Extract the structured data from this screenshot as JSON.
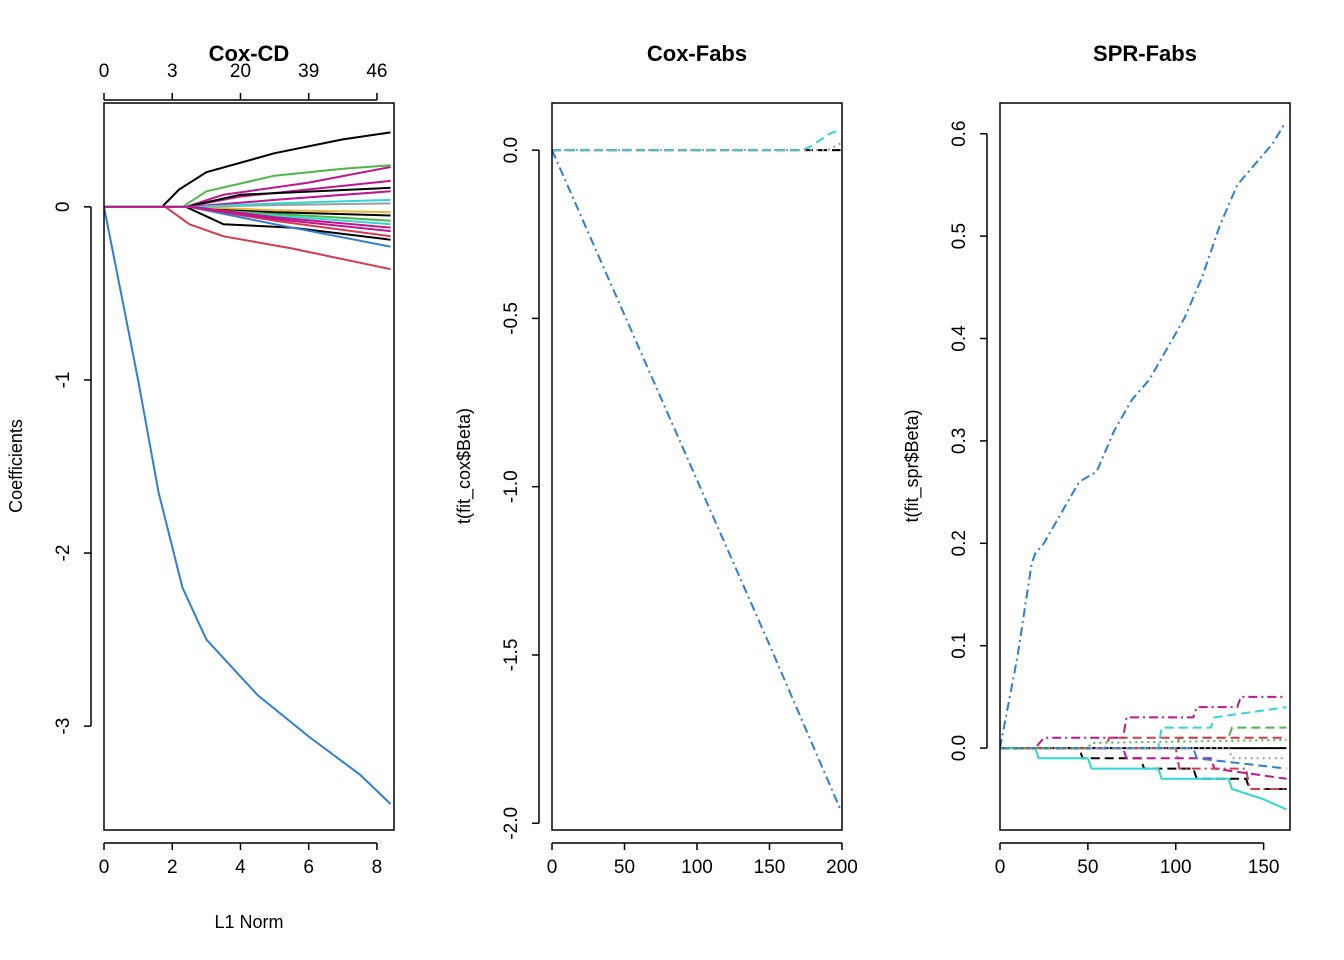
{
  "chart_data": [
    {
      "type": "line",
      "title": "Cox-CD",
      "xlabel": "L1 Norm",
      "ylabel": "Coefficients",
      "xlim": [
        0,
        8.5
      ],
      "ylim": [
        -3.6,
        0.6
      ],
      "x_ticks": [
        "0",
        "2",
        "4",
        "6",
        "8"
      ],
      "y_ticks": [
        "-3",
        "-2",
        "-1",
        "0"
      ],
      "top_axis_ticks": [
        "0",
        "3",
        "20",
        "39",
        "46"
      ],
      "top_axis_positions": [
        0,
        2,
        4,
        6,
        8
      ],
      "series": [
        {
          "color": "#2b7fd6",
          "values": [
            [
              0,
              0
            ],
            [
              0.5,
              -0.5
            ],
            [
              1.0,
              -1.0
            ],
            [
              1.6,
              -1.65
            ],
            [
              2.3,
              -2.2
            ],
            [
              3.0,
              -2.5
            ],
            [
              4.5,
              -2.82
            ],
            [
              6.0,
              -3.06
            ],
            [
              7.5,
              -3.28
            ],
            [
              8.4,
              -3.45
            ]
          ]
        },
        {
          "color": "#000000",
          "values": [
            [
              0,
              0
            ],
            [
              1.7,
              0
            ],
            [
              2.2,
              0.1
            ],
            [
              3.0,
              0.2
            ],
            [
              5.0,
              0.31
            ],
            [
              7.0,
              0.39
            ],
            [
              8.4,
              0.43
            ]
          ]
        },
        {
          "color": "#4db848",
          "values": [
            [
              0,
              0
            ],
            [
              2.3,
              0
            ],
            [
              3.0,
              0.09
            ],
            [
              5.0,
              0.18
            ],
            [
              7.0,
              0.22
            ],
            [
              8.4,
              0.24
            ]
          ]
        },
        {
          "color": "#c0158f",
          "values": [
            [
              0,
              0
            ],
            [
              2.4,
              0
            ],
            [
              3.5,
              0.07
            ],
            [
              6.0,
              0.14
            ],
            [
              8.4,
              0.23
            ]
          ]
        },
        {
          "color": "#c0158f",
          "values": [
            [
              0,
              0
            ],
            [
              2.4,
              0
            ],
            [
              4.0,
              0.06
            ],
            [
              8.4,
              0.15
            ]
          ]
        },
        {
          "color": "#000000",
          "values": [
            [
              0,
              0
            ],
            [
              2.4,
              0
            ],
            [
              4.0,
              0.07
            ],
            [
              8.4,
              0.11
            ]
          ]
        },
        {
          "color": "#c0158f",
          "values": [
            [
              0,
              0
            ],
            [
              2.5,
              0
            ],
            [
              5.0,
              0.04
            ],
            [
              8.4,
              0.09
            ]
          ]
        },
        {
          "color": "#d63a4e",
          "values": [
            [
              0,
              0
            ],
            [
              1.8,
              0
            ],
            [
              2.5,
              -0.1
            ],
            [
              3.5,
              -0.17
            ],
            [
              5.5,
              -0.24
            ],
            [
              8.4,
              -0.36
            ]
          ]
        },
        {
          "color": "#000000",
          "values": [
            [
              0,
              0
            ],
            [
              2.4,
              0
            ],
            [
              3.5,
              -0.1
            ],
            [
              5.5,
              -0.12
            ],
            [
              8.4,
              -0.19
            ]
          ]
        },
        {
          "color": "#2b7fd6",
          "values": [
            [
              0,
              0
            ],
            [
              2.5,
              0
            ],
            [
              5.0,
              -0.1
            ],
            [
              8.4,
              -0.23
            ]
          ]
        },
        {
          "color": "#d63a4e",
          "values": [
            [
              0,
              0
            ],
            [
              2.5,
              0
            ],
            [
              5.0,
              -0.08
            ],
            [
              8.4,
              -0.17
            ]
          ]
        },
        {
          "color": "#c0158f",
          "values": [
            [
              0,
              0
            ],
            [
              2.5,
              0
            ],
            [
              5.0,
              -0.07
            ],
            [
              8.4,
              -0.14
            ]
          ]
        },
        {
          "color": "#2fd8d4",
          "values": [
            [
              0,
              0
            ],
            [
              2.6,
              0
            ],
            [
              5.0,
              -0.05
            ],
            [
              8.4,
              -0.1
            ]
          ]
        },
        {
          "color": "#4db848",
          "values": [
            [
              0,
              0
            ],
            [
              2.6,
              0
            ],
            [
              5.0,
              -0.04
            ],
            [
              8.4,
              -0.08
            ]
          ]
        },
        {
          "color": "#000000",
          "values": [
            [
              0,
              0
            ],
            [
              2.6,
              0
            ],
            [
              5.0,
              -0.03
            ],
            [
              8.4,
              -0.05
            ]
          ]
        },
        {
          "color": "#e8b43a",
          "values": [
            [
              0,
              0
            ],
            [
              2.6,
              0
            ],
            [
              5.0,
              -0.02
            ],
            [
              8.4,
              -0.03
            ]
          ]
        },
        {
          "color": "#9e9e9e",
          "values": [
            [
              0,
              0
            ],
            [
              2.6,
              0
            ],
            [
              5.0,
              0.01
            ],
            [
              8.4,
              0.02
            ]
          ]
        },
        {
          "color": "#2fd8d4",
          "values": [
            [
              0,
              0
            ],
            [
              2.6,
              0
            ],
            [
              5.0,
              0.02
            ],
            [
              8.4,
              0.04
            ]
          ]
        },
        {
          "color": "#c0158f",
          "values": [
            [
              0,
              0
            ],
            [
              2.6,
              0
            ],
            [
              5.0,
              -0.06
            ],
            [
              8.4,
              -0.12
            ]
          ]
        }
      ]
    },
    {
      "type": "line",
      "title": "Cox-Fabs",
      "xlabel": "",
      "ylabel": "t(fit_cox$Beta)",
      "xlim": [
        0,
        200
      ],
      "ylim": [
        -2.02,
        0.14
      ],
      "x_ticks": [
        "0",
        "50",
        "100",
        "150",
        "200"
      ],
      "y_ticks": [
        "-2.0",
        "-1.5",
        "-1.0",
        "-0.5",
        "0.0"
      ],
      "series": [
        {
          "color": "#2b7fd6",
          "dash": "dashdot",
          "values": [
            [
              0,
              0
            ],
            [
              50,
              -0.49
            ],
            [
              100,
              -0.98
            ],
            [
              150,
              -1.47
            ],
            [
              198,
              -1.95
            ],
            [
              199,
              -1.96
            ]
          ]
        },
        {
          "color": "#d63a4e",
          "dash": "dashed",
          "values": [
            [
              0,
              0
            ],
            [
              199,
              0
            ]
          ]
        },
        {
          "color": "#000000",
          "dash": "dashed",
          "values": [
            [
              0,
              0
            ],
            [
              199,
              0
            ]
          ]
        },
        {
          "color": "#2fd8d4",
          "dash": "dashed",
          "values": [
            [
              0,
              0
            ],
            [
              172,
              0
            ],
            [
              178,
              0.01
            ],
            [
              185,
              0.03
            ],
            [
              192,
              0.05
            ],
            [
              199,
              0.06
            ]
          ]
        },
        {
          "color": "#9e9e9e",
          "dash": "dotted",
          "values": [
            [
              0,
              0
            ],
            [
              190,
              0
            ],
            [
              199,
              0.02
            ]
          ]
        }
      ]
    },
    {
      "type": "line",
      "title": "SPR-Fabs",
      "xlabel": "",
      "ylabel": "t(fit_spr$Beta)",
      "xlim": [
        0,
        165
      ],
      "ylim": [
        -0.08,
        0.63
      ],
      "x_ticks": [
        "0",
        "50",
        "100",
        "150"
      ],
      "y_ticks": [
        "0.0",
        "0.1",
        "0.2",
        "0.3",
        "0.4",
        "0.5",
        "0.6"
      ],
      "series": [
        {
          "color": "#2b7fd6",
          "dash": "dashdot",
          "values": [
            [
              0,
              0
            ],
            [
              10,
              0.09
            ],
            [
              18,
              0.18
            ],
            [
              20,
              0.19
            ],
            [
              25,
              0.2
            ],
            [
              35,
              0.23
            ],
            [
              45,
              0.26
            ],
            [
              55,
              0.27
            ],
            [
              65,
              0.31
            ],
            [
              75,
              0.34
            ],
            [
              85,
              0.36
            ],
            [
              95,
              0.39
            ],
            [
              105,
              0.42
            ],
            [
              115,
              0.46
            ],
            [
              125,
              0.51
            ],
            [
              135,
              0.55
            ],
            [
              145,
              0.57
            ],
            [
              155,
              0.59
            ],
            [
              162,
              0.61
            ]
          ]
        },
        {
          "color": "#c0158f",
          "dash": "dashdot",
          "values": [
            [
              0,
              0
            ],
            [
              20,
              0
            ],
            [
              25,
              0.01
            ],
            [
              70,
              0.01
            ],
            [
              72,
              0.03
            ],
            [
              110,
              0.03
            ],
            [
              112,
              0.04
            ],
            [
              135,
              0.04
            ],
            [
              137,
              0.05
            ],
            [
              163,
              0.05
            ]
          ]
        },
        {
          "color": "#2fd8d4",
          "dash": "dashed",
          "values": [
            [
              0,
              0
            ],
            [
              90,
              0
            ],
            [
              92,
              0.02
            ],
            [
              120,
              0.02
            ],
            [
              122,
              0.03
            ],
            [
              163,
              0.04
            ]
          ]
        },
        {
          "color": "#4db848",
          "dash": "dashed",
          "values": [
            [
              0,
              0
            ],
            [
              100,
              0
            ],
            [
              102,
              0.01
            ],
            [
              130,
              0.01
            ],
            [
              132,
              0.02
            ],
            [
              163,
              0.02
            ]
          ]
        },
        {
          "color": "#000000",
          "dash": "solid",
          "values": [
            [
              0,
              0
            ],
            [
              163,
              0
            ]
          ]
        },
        {
          "color": "#d63a4e",
          "dash": "dashed",
          "values": [
            [
              0,
              0
            ],
            [
              60,
              0
            ],
            [
              62,
              0.01
            ],
            [
              163,
              0.01
            ]
          ]
        },
        {
          "color": "#000000",
          "dash": "dashed",
          "values": [
            [
              0,
              0
            ],
            [
              45,
              0
            ],
            [
              47,
              -0.01
            ],
            [
              80,
              -0.01
            ],
            [
              82,
              -0.02
            ],
            [
              110,
              -0.02
            ],
            [
              112,
              -0.03
            ],
            [
              140,
              -0.03
            ],
            [
              142,
              -0.04
            ],
            [
              163,
              -0.04
            ]
          ]
        },
        {
          "color": "#2fd8d4",
          "dash": "solid",
          "values": [
            [
              0,
              0
            ],
            [
              20,
              0
            ],
            [
              22,
              -0.01
            ],
            [
              50,
              -0.01
            ],
            [
              52,
              -0.02
            ],
            [
              90,
              -0.02
            ],
            [
              92,
              -0.03
            ],
            [
              130,
              -0.03
            ],
            [
              132,
              -0.04
            ],
            [
              150,
              -0.05
            ],
            [
              163,
              -0.06
            ]
          ]
        },
        {
          "color": "#c0158f",
          "dash": "dashed",
          "values": [
            [
              0,
              0
            ],
            [
              70,
              0
            ],
            [
              72,
              -0.01
            ],
            [
              120,
              -0.01
            ],
            [
              122,
              -0.02
            ],
            [
              163,
              -0.03
            ]
          ]
        },
        {
          "color": "#d63a4e",
          "dash": "dashdot",
          "values": [
            [
              0,
              0
            ],
            [
              100,
              0
            ],
            [
              102,
              -0.02
            ],
            [
              140,
              -0.02
            ],
            [
              142,
              -0.04
            ],
            [
              163,
              -0.04
            ]
          ]
        },
        {
          "color": "#2b7fd6",
          "dash": "dashed",
          "values": [
            [
              0,
              0
            ],
            [
              110,
              0
            ],
            [
              112,
              -0.01
            ],
            [
              163,
              -0.02
            ]
          ]
        },
        {
          "color": "#9e9e9e",
          "dash": "dotted",
          "values": [
            [
              0,
              0
            ],
            [
              130,
              0
            ],
            [
              132,
              -0.01
            ],
            [
              163,
              -0.01
            ]
          ]
        },
        {
          "color": "#4db848",
          "dash": "dotted",
          "values": [
            [
              0,
              0
            ],
            [
              50,
              0
            ],
            [
              52,
              0.005
            ],
            [
              163,
              0.008
            ]
          ]
        }
      ]
    }
  ]
}
